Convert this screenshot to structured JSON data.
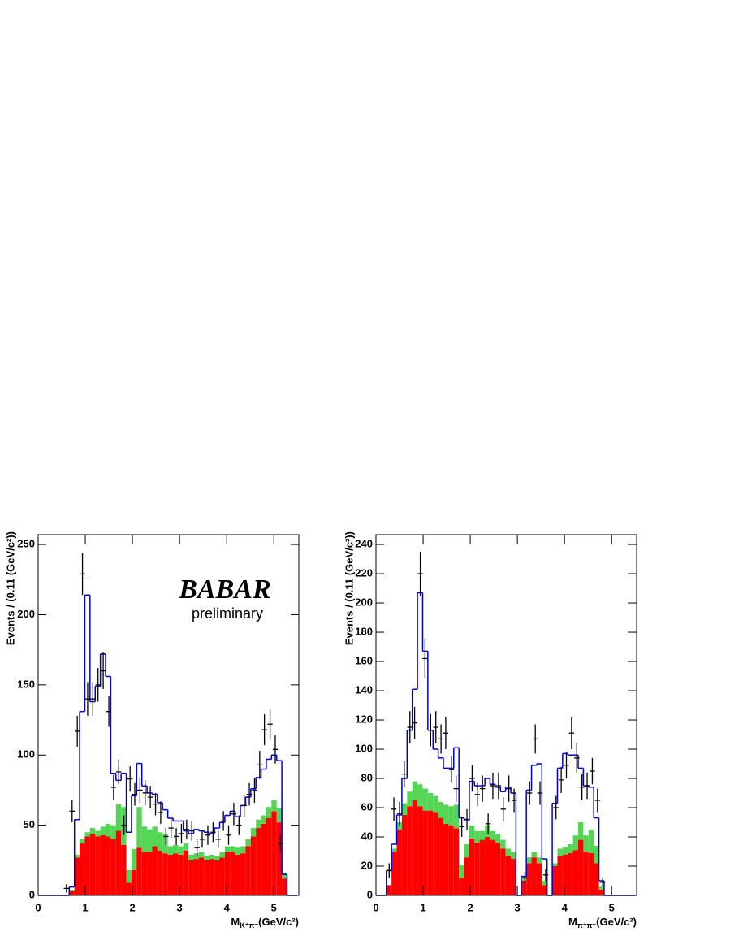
{
  "chart_data": [
    {
      "type": "histogram",
      "ylabel": "Events / (0.11 (GeV/c²))",
      "xlabel": "M",
      "xlabel_sub": "K⁺π⁻",
      "xlabel_unit": "(GeV/c²)",
      "logo": "BABAR",
      "note": "preliminary",
      "xlim": [
        0,
        5.53
      ],
      "ylim": [
        0,
        257
      ],
      "xticks": [
        0,
        1,
        2,
        3,
        4,
        5
      ],
      "yticks": [
        0,
        50,
        100,
        150,
        200,
        250
      ],
      "bins": [
        0,
        0.11,
        0.22,
        0.33,
        0.44,
        0.55,
        0.66,
        0.77,
        0.88,
        0.99,
        1.1,
        1.21,
        1.32,
        1.43,
        1.54,
        1.65,
        1.76,
        1.87,
        1.98,
        2.09,
        2.2,
        2.31,
        2.42,
        2.53,
        2.64,
        2.75,
        2.86,
        2.97,
        3.08,
        3.19,
        3.3,
        3.41,
        3.52,
        3.63,
        3.74,
        3.85,
        3.96,
        4.07,
        4.18,
        4.29,
        4.4,
        4.51,
        4.62,
        4.73,
        4.84,
        4.95,
        5.06,
        5.17,
        5.28,
        5.39,
        5.5
      ],
      "series": [
        {
          "color": "#ff0000",
          "values": [
            0,
            0,
            0,
            0,
            0,
            0,
            3,
            27,
            37,
            42,
            44,
            42,
            43,
            42,
            40,
            46,
            36,
            9,
            18,
            34,
            31,
            31,
            35,
            32,
            30,
            29,
            30,
            29,
            32,
            25,
            26,
            27,
            25,
            26,
            25,
            27,
            31,
            31,
            29,
            30,
            35,
            42,
            48,
            51,
            55,
            60,
            52,
            12,
            0,
            0
          ]
        },
        {
          "color": "#55d555",
          "values": [
            0,
            0,
            0,
            0,
            0,
            0,
            1,
            2,
            3,
            3,
            4,
            4,
            6,
            9,
            10,
            19,
            27,
            9,
            15,
            29,
            18,
            16,
            14,
            13,
            14,
            6,
            6,
            6,
            5,
            4,
            4,
            4,
            3,
            3,
            3,
            4,
            4,
            4,
            5,
            5,
            5,
            6,
            6,
            6,
            8,
            8,
            10,
            4,
            0,
            0
          ]
        }
      ],
      "fit": {
        "color": "#0000cc",
        "values": [
          0,
          0,
          0,
          0,
          0,
          0,
          6,
          54,
          131,
          214,
          138,
          149,
          172,
          156,
          87,
          82,
          87,
          45,
          71,
          94,
          78,
          73,
          72,
          66,
          61,
          55,
          53,
          53,
          46,
          44,
          47,
          46,
          45,
          44,
          48,
          52,
          57,
          60,
          56,
          64,
          70,
          76,
          84,
          90,
          97,
          100,
          96,
          15,
          0,
          0
        ]
      },
      "points": {
        "x": [
          0.6,
          0.72,
          0.83,
          0.94,
          1.05,
          1.16,
          1.27,
          1.38,
          1.5,
          1.6,
          1.71,
          1.82,
          1.95,
          2.05,
          2.16,
          2.27,
          2.38,
          2.49,
          2.6,
          2.71,
          2.82,
          2.93,
          3.04,
          3.15,
          3.26,
          3.37,
          3.48,
          3.6,
          3.71,
          3.82,
          3.93,
          4.04,
          4.15,
          4.26,
          4.37,
          4.48,
          4.59,
          4.7,
          4.8,
          4.92,
          5.03,
          5.14
        ],
        "y": [
          5,
          60,
          117,
          229,
          140,
          140,
          150,
          160,
          131,
          77,
          88,
          50,
          83,
          72,
          75,
          73,
          70,
          65,
          59,
          42,
          48,
          42,
          44,
          47,
          46,
          34,
          40,
          43,
          45,
          40,
          53,
          43,
          58,
          50,
          64,
          72,
          75,
          93,
          118,
          122,
          104,
          37
        ],
        "err": [
          3,
          8,
          11,
          15,
          12,
          12,
          12,
          13,
          11,
          9,
          9,
          7,
          9,
          8,
          9,
          9,
          8,
          8,
          8,
          6,
          7,
          6,
          7,
          7,
          7,
          6,
          6,
          7,
          7,
          6,
          7,
          7,
          8,
          7,
          8,
          8,
          9,
          10,
          11,
          11,
          10,
          6
        ]
      }
    },
    {
      "type": "histogram",
      "ylabel": "Events / (0.11 (GeV/c²))",
      "xlabel": "M",
      "xlabel_sub": "π⁺π⁻",
      "xlabel_unit": "(GeV/c²)",
      "xlim": [
        0,
        5.53
      ],
      "ylim": [
        0,
        246.7
      ],
      "xticks": [
        0,
        1,
        2,
        3,
        4,
        5
      ],
      "yticks": [
        0,
        20,
        40,
        60,
        80,
        100,
        120,
        140,
        160,
        180,
        200,
        220,
        240
      ],
      "bins": [
        0,
        0.11,
        0.22,
        0.33,
        0.44,
        0.55,
        0.66,
        0.77,
        0.88,
        0.99,
        1.1,
        1.21,
        1.32,
        1.43,
        1.54,
        1.65,
        1.76,
        1.87,
        1.98,
        2.09,
        2.2,
        2.31,
        2.42,
        2.53,
        2.64,
        2.75,
        2.86,
        2.97,
        3.08,
        3.19,
        3.3,
        3.41,
        3.52,
        3.63,
        3.74,
        3.85,
        3.96,
        4.07,
        4.18,
        4.29,
        4.4,
        4.51,
        4.62,
        4.73,
        4.84,
        4.95,
        5.06,
        5.17,
        5.28,
        5.39,
        5.5
      ],
      "series": [
        {
          "color": "#ff0000",
          "values": [
            0,
            0,
            7,
            30,
            45,
            55,
            61,
            65,
            61,
            58,
            58,
            57,
            53,
            49,
            48,
            46,
            12,
            26,
            39,
            36,
            38,
            40,
            38,
            36,
            32,
            27,
            25,
            0,
            10,
            22,
            26,
            22,
            7,
            0,
            20,
            27,
            28,
            29,
            31,
            38,
            30,
            29,
            22,
            4,
            0,
            0,
            0,
            0,
            0,
            0
          ]
        },
        {
          "color": "#55d555",
          "values": [
            0,
            0,
            0,
            2,
            5,
            8,
            10,
            13,
            15,
            15,
            12,
            11,
            11,
            13,
            13,
            16,
            9,
            9,
            9,
            8,
            6,
            8,
            6,
            6,
            6,
            5,
            5,
            0,
            3,
            4,
            4,
            4,
            3,
            0,
            2,
            5,
            5,
            6,
            10,
            12,
            11,
            16,
            12,
            2,
            0,
            0,
            0,
            0,
            0,
            0
          ]
        }
      ],
      "fit": {
        "color": "#0000cc",
        "values": [
          0,
          0,
          17,
          35,
          55,
          80,
          113,
          141,
          207,
          167,
          113,
          100,
          94,
          87,
          87,
          101,
          53,
          51,
          78,
          75,
          75,
          80,
          76,
          74,
          71,
          74,
          70,
          0,
          13,
          72,
          89,
          90,
          25,
          0,
          63,
          87,
          97,
          96,
          96,
          87,
          75,
          74,
          53,
          10,
          0,
          0,
          0,
          0,
          0,
          0
        ]
      },
      "points": {
        "x": [
          0.28,
          0.38,
          0.5,
          0.6,
          0.72,
          0.82,
          0.94,
          1.04,
          1.16,
          1.27,
          1.38,
          1.48,
          1.6,
          1.7,
          1.82,
          1.93,
          2.04,
          2.15,
          2.26,
          2.38,
          2.48,
          2.6,
          2.7,
          2.82,
          2.93,
          3.16,
          3.26,
          3.38,
          3.48,
          3.6,
          3.82,
          3.93,
          4.04,
          4.15,
          4.26,
          4.37,
          4.48,
          4.59,
          4.7,
          4.81
        ],
        "y": [
          17,
          59,
          56,
          83,
          115,
          118,
          220,
          162,
          113,
          115,
          107,
          111,
          86,
          73,
          47,
          52,
          80,
          69,
          73,
          49,
          75,
          75,
          59,
          73,
          65,
          12,
          70,
          107,
          70,
          14,
          60,
          79,
          89,
          111,
          94,
          74,
          75,
          85,
          65,
          9
        ],
        "err": [
          5,
          8,
          8,
          9,
          11,
          11,
          15,
          13,
          11,
          11,
          10,
          11,
          9,
          9,
          7,
          7,
          9,
          8,
          9,
          7,
          9,
          9,
          8,
          9,
          8,
          4,
          8,
          10,
          8,
          4,
          8,
          9,
          9,
          11,
          10,
          9,
          9,
          9,
          8,
          3
        ]
      }
    }
  ]
}
